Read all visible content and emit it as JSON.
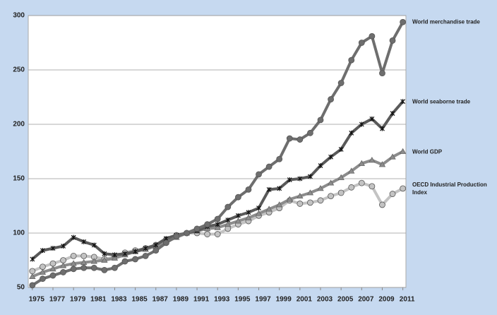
{
  "chart_data": {
    "type": "line",
    "x": [
      1975,
      1976,
      1977,
      1978,
      1979,
      1980,
      1981,
      1982,
      1983,
      1984,
      1985,
      1986,
      1987,
      1988,
      1989,
      1990,
      1991,
      1992,
      1993,
      1994,
      1995,
      1996,
      1997,
      1998,
      1999,
      2000,
      2001,
      2002,
      2003,
      2004,
      2005,
      2006,
      2007,
      2008,
      2009,
      2010,
      2011
    ],
    "xlim": [
      1974.6,
      2011.3
    ],
    "xticks": [
      1975,
      1977,
      1979,
      1981,
      1983,
      1985,
      1987,
      1989,
      1991,
      1993,
      1995,
      1997,
      1999,
      2001,
      2003,
      2005,
      2007,
      2009,
      2011
    ],
    "ylim": [
      50,
      300
    ],
    "yticks": [
      50,
      100,
      150,
      200,
      250,
      300
    ],
    "grid": true,
    "series": [
      {
        "name": "World merchandise trade",
        "color": "#6e6e6e",
        "marker": "circle",
        "values": [
          52,
          58,
          61,
          64,
          67,
          68,
          68,
          66,
          68,
          74,
          76,
          79,
          84,
          91,
          97,
          100,
          104,
          108,
          113,
          124,
          133,
          140,
          154,
          161,
          168,
          187,
          186,
          192,
          204,
          223,
          238,
          259,
          275,
          281,
          247,
          277,
          294
        ]
      },
      {
        "name": "World seaborne trade",
        "color": "#5a5a5a",
        "marker": "x",
        "values": [
          76,
          84,
          86,
          88,
          96,
          92,
          89,
          81,
          80,
          81,
          83,
          86,
          89,
          95,
          98,
          100,
          102,
          106,
          108,
          112,
          116,
          119,
          123,
          140,
          141,
          149,
          150,
          152,
          162,
          170,
          177,
          192,
          200,
          205,
          196,
          210,
          221
        ]
      },
      {
        "name": "World GDP",
        "color": "#8c8c8c",
        "marker": "triangle",
        "values": [
          60,
          64,
          67,
          70,
          72,
          73,
          74,
          75,
          77,
          80,
          83,
          85,
          88,
          92,
          96,
          100,
          102,
          104,
          105,
          108,
          111,
          114,
          118,
          122,
          126,
          131,
          134,
          137,
          141,
          146,
          151,
          157,
          164,
          167,
          163,
          170,
          175
        ]
      },
      {
        "name": "OECD Industrial Production Index",
        "color": "#c3c3c3",
        "marker": "circle",
        "values": [
          65,
          69,
          72,
          75,
          79,
          79,
          78,
          76,
          78,
          82,
          84,
          86,
          89,
          94,
          98,
          100,
          100,
          99,
          99,
          104,
          108,
          111,
          116,
          119,
          123,
          130,
          127,
          128,
          130,
          134,
          137,
          142,
          146,
          143,
          126,
          136,
          141
        ]
      }
    ]
  }
}
